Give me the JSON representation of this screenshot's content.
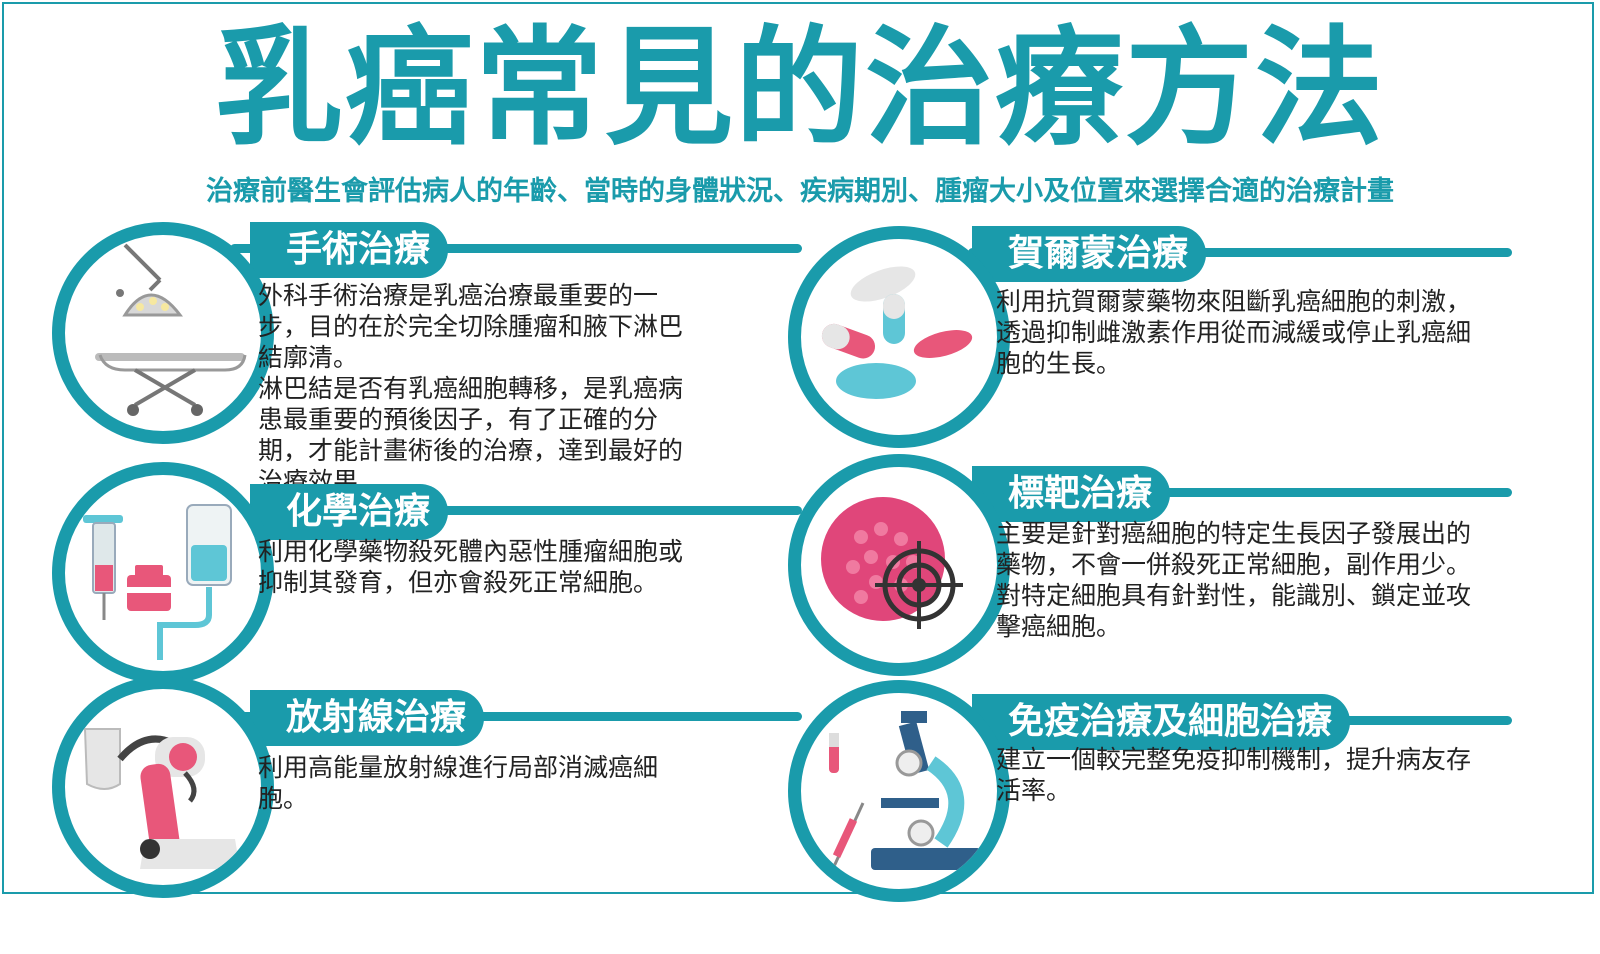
{
  "title": "乳癌常見的治療方法",
  "subtitle": "治療前醫生會評估病人的年齡、當時的身體狀況、疾病期別、腫瘤大小及位置來選擇合適的治療計畫",
  "colors": {
    "accent": "#1a9bab",
    "pink": "#e8577a",
    "light_blue": "#5ec6d6",
    "text": "#222222"
  },
  "sections": [
    {
      "heading": "手術治療",
      "icon": "surgical-bed-lamp-icon",
      "text": "外科手術治療是乳癌治療最重要的一步，目的在於完全切除腫瘤和腋下淋巴結廓清。\n淋巴結是否有乳癌細胞轉移，是乳癌病患最重要的預後因子，有了正確的分期，才能計畫術後的治療，達到最好的治療效果。"
    },
    {
      "heading": "化學治療",
      "icon": "syringe-iv-bag-icon",
      "text": "利用化學藥物殺死體內惡性腫瘤細胞或抑制其發育，但亦會殺死正常細胞。"
    },
    {
      "heading": "放射線治療",
      "icon": "radiation-machine-icon",
      "text": "利用高能量放射線進行局部消滅癌細胞。"
    },
    {
      "heading": "賀爾蒙治療",
      "icon": "pills-icon",
      "text": "利用抗賀爾蒙藥物來阻斷乳癌細胞的刺激，透過抑制雌激素作用從而減緩或停止乳癌細胞的生長。"
    },
    {
      "heading": "標靶治療",
      "icon": "target-cell-icon",
      "text": "主要是針對癌細胞的特定生長因子發展出的藥物，不會一併殺死正常細胞，副作用少。\n對特定細胞具有針對性，能識別、鎖定並攻擊癌細胞。"
    },
    {
      "heading": "免疫治療及細胞治療",
      "icon": "microscope-icon",
      "text": "建立一個較完整免疫抑制機制，提升病友存活率。"
    }
  ]
}
